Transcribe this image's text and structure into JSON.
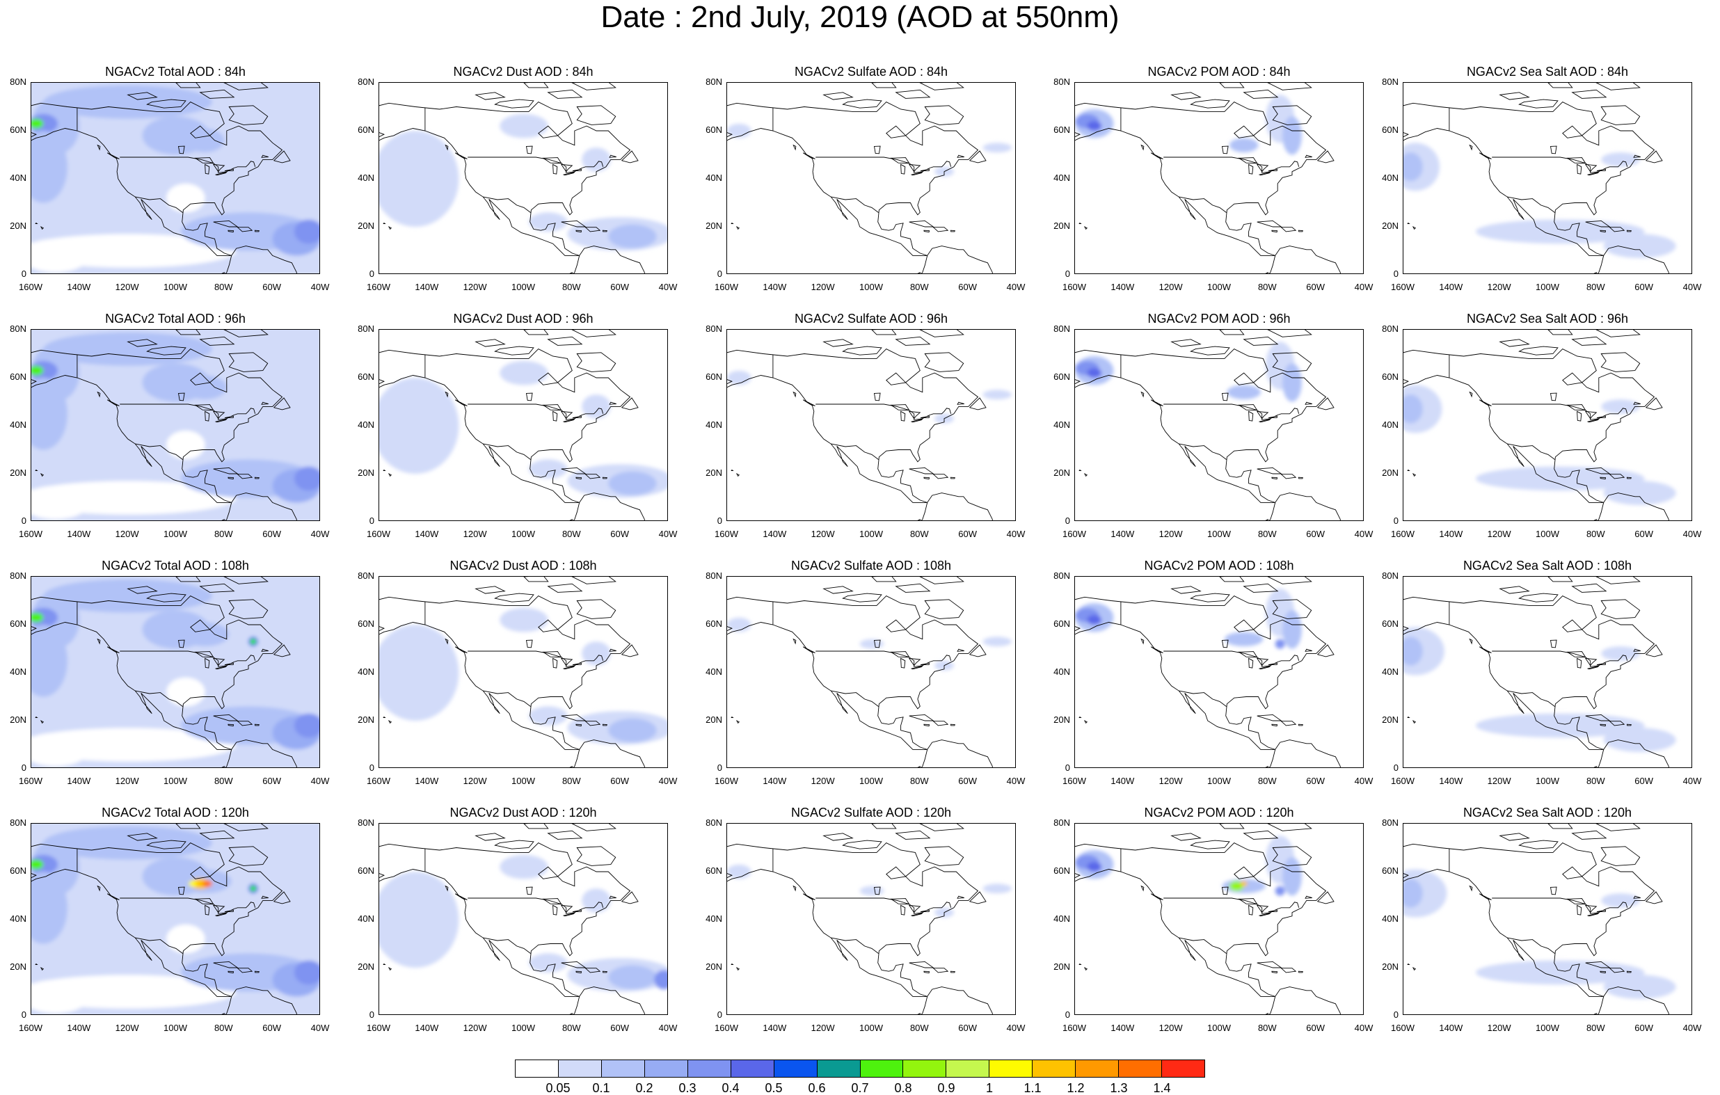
{
  "title": "Date : 2nd July, 2019 (AOD at 550nm)",
  "axes": {
    "lat_ticks": [
      "80N",
      "60N",
      "40N",
      "20N",
      "0"
    ],
    "lon_ticks": [
      "160W",
      "140W",
      "120W",
      "100W",
      "80W",
      "60W",
      "40W"
    ]
  },
  "colorbar": {
    "colors": [
      "#ffffff",
      "#d2dbf9",
      "#b1c2f7",
      "#97acf4",
      "#7f93f1",
      "#5a67e9",
      "#0a55ef",
      "#0a9a92",
      "#4ef20e",
      "#93f50e",
      "#c5f74e",
      "#fefb00",
      "#fec200",
      "#ff9900",
      "#ff6e00",
      "#ff2a14"
    ],
    "labels": [
      "0.05",
      "0.1",
      "0.2",
      "0.3",
      "0.4",
      "0.5",
      "0.6",
      "0.7",
      "0.8",
      "0.9",
      "1",
      "1.1",
      "1.2",
      "1.3",
      "1.4"
    ]
  },
  "chart_data": {
    "type": "heatmap",
    "variable": "AOD at 550nm",
    "date": "2nd July, 2019",
    "forecast_hours": [
      "84h",
      "96h",
      "108h",
      "120h"
    ],
    "lon_range": [
      -160,
      -40
    ],
    "lat_range": [
      0,
      80
    ],
    "panels": [
      {
        "title": "NGACv2 Total AOD : 84h",
        "species": "Total",
        "hour": "84h"
      },
      {
        "title": "NGACv2 Dust AOD : 84h",
        "species": "Dust",
        "hour": "84h"
      },
      {
        "title": "NGACv2 Sulfate AOD : 84h",
        "species": "Sulfate",
        "hour": "84h"
      },
      {
        "title": "NGACv2 POM AOD : 84h",
        "species": "POM",
        "hour": "84h"
      },
      {
        "title": "NGACv2 Sea Salt AOD : 84h",
        "species": "Sea Salt",
        "hour": "84h"
      },
      {
        "title": "NGACv2 Total AOD : 96h",
        "species": "Total",
        "hour": "96h"
      },
      {
        "title": "NGACv2 Dust AOD : 96h",
        "species": "Dust",
        "hour": "96h"
      },
      {
        "title": "NGACv2 Sulfate AOD : 96h",
        "species": "Sulfate",
        "hour": "96h"
      },
      {
        "title": "NGACv2 POM AOD : 96h",
        "species": "POM",
        "hour": "96h"
      },
      {
        "title": "NGACv2 Sea Salt AOD : 96h",
        "species": "Sea Salt",
        "hour": "96h"
      },
      {
        "title": "NGACv2 Total AOD : 108h",
        "species": "Total",
        "hour": "108h"
      },
      {
        "title": "NGACv2 Dust AOD : 108h",
        "species": "Dust",
        "hour": "108h"
      },
      {
        "title": "NGACv2 Sulfate AOD : 108h",
        "species": "Sulfate",
        "hour": "108h"
      },
      {
        "title": "NGACv2 POM AOD : 108h",
        "species": "POM",
        "hour": "108h"
      },
      {
        "title": "NGACv2 Sea Salt AOD : 108h",
        "species": "Sea Salt",
        "hour": "108h"
      },
      {
        "title": "NGACv2 Total AOD : 120h",
        "species": "Total",
        "hour": "120h"
      },
      {
        "title": "NGACv2 Dust AOD : 120h",
        "species": "Dust",
        "hour": "120h"
      },
      {
        "title": "NGACv2 Sulfate AOD : 120h",
        "species": "Sulfate",
        "hour": "120h"
      },
      {
        "title": "NGACv2 POM AOD : 120h",
        "species": "POM",
        "hour": "120h"
      },
      {
        "title": "NGACv2 Sea Salt  AOD : 120h",
        "species": "Sea Salt",
        "hour": "120h"
      }
    ]
  }
}
